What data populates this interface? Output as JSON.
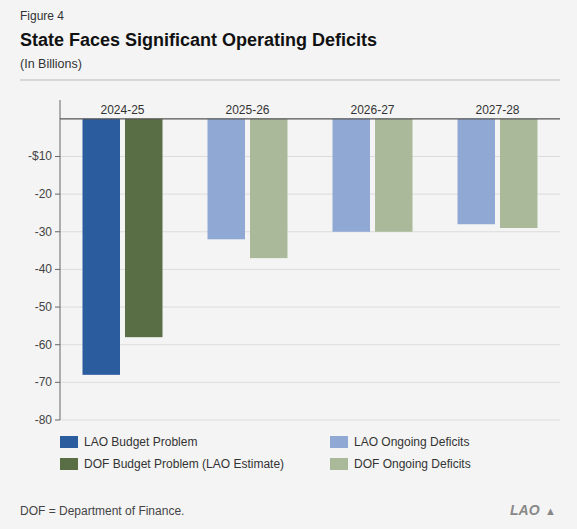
{
  "chart_data": {
    "type": "bar",
    "title": "State Faces Significant Operating Deficits",
    "subtitle": "(In Billions)",
    "annotations": [
      "Figure 4",
      "DOF = Department of Finance.",
      "LAO",
      "▲"
    ],
    "categories": [
      "2024-25",
      "2025-26",
      "2026-27",
      "2027-28"
    ],
    "series": [
      {
        "name": "LAO Budget Problem",
        "color": "#2B5C9E",
        "values": [
          -68,
          null,
          null,
          null
        ]
      },
      {
        "name": "DOF Budget Problem (LAO Estimate)",
        "color": "#5A6E45",
        "values": [
          -58,
          null,
          null,
          null
        ]
      },
      {
        "name": "LAO Ongoing Deficits",
        "color": "#8FA8D4",
        "values": [
          null,
          -32,
          -30,
          -28
        ]
      },
      {
        "name": "DOF Ongoing Deficits",
        "color": "#A9B99A",
        "values": [
          null,
          -37,
          -30,
          -29
        ]
      }
    ],
    "ylim": [
      -80,
      5
    ],
    "yticks": [
      {
        "value": -10,
        "label": "-$10"
      },
      -20,
      -30,
      -40,
      -50,
      -60,
      -70,
      -80
    ],
    "grid": true,
    "legend": "bottom"
  }
}
